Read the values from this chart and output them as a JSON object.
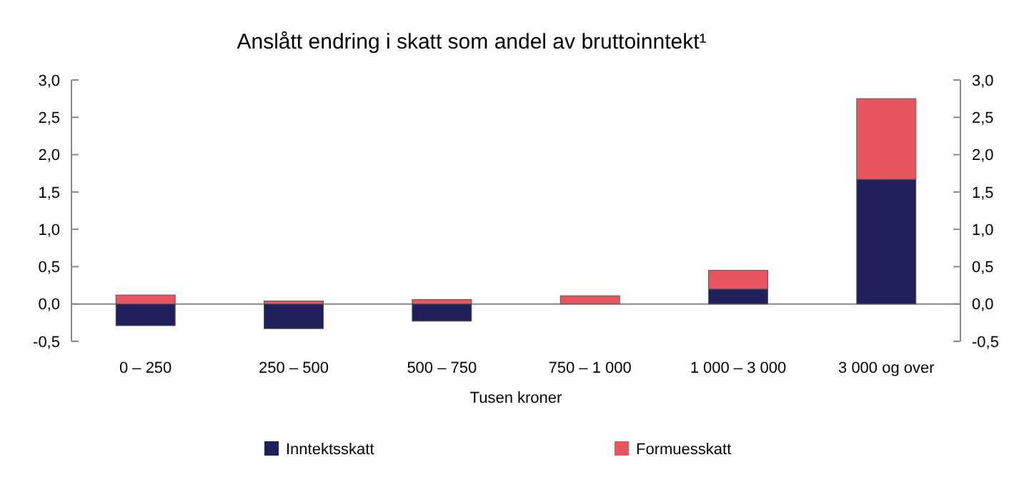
{
  "chart_data": {
    "type": "bar",
    "title": "Anslått endring i skatt som andel av bruttoinntekt¹",
    "xlabel": "Tusen kroner",
    "categories": [
      "0 – 250",
      "250 – 500",
      "500 – 750",
      "750 – 1 000",
      "1 000 – 3 000",
      "3 000 og over"
    ],
    "stacked": true,
    "series": [
      {
        "name": "Inntektsskatt",
        "color": "#1f1f5c",
        "values": [
          -0.29,
          -0.33,
          -0.23,
          0,
          0.2,
          1.67
        ]
      },
      {
        "name": "Formuesskatt",
        "color": "#e8555e",
        "values": [
          0.12,
          0.04,
          0.06,
          0.11,
          0.25,
          1.08
        ]
      }
    ],
    "ylim": [
      -0.5,
      3
    ],
    "yticks": [
      {
        "value": -0.5,
        "label": "-0,5"
      },
      {
        "value": 0,
        "label": "0,0"
      },
      {
        "value": 0.5,
        "label": "0,5"
      },
      {
        "value": 1,
        "label": "1,0"
      },
      {
        "value": 1.5,
        "label": "1,5"
      },
      {
        "value": 2,
        "label": "2,0"
      },
      {
        "value": 2.5,
        "label": "2,5"
      },
      {
        "value": 3,
        "label": "3,0"
      }
    ],
    "y2lim": [
      -0.5,
      3
    ],
    "y2ticks": [
      {
        "value": -0.5,
        "label": "-0,5"
      },
      {
        "value": 0,
        "label": "0,0"
      },
      {
        "value": 0.5,
        "label": "0,5"
      },
      {
        "value": 1,
        "label": "1,0"
      },
      {
        "value": 1.5,
        "label": "1,5"
      },
      {
        "value": 2,
        "label": "2,0"
      },
      {
        "value": 2.5,
        "label": "2,5"
      },
      {
        "value": 3,
        "label": "3,0"
      }
    ],
    "legend": "bottom"
  }
}
